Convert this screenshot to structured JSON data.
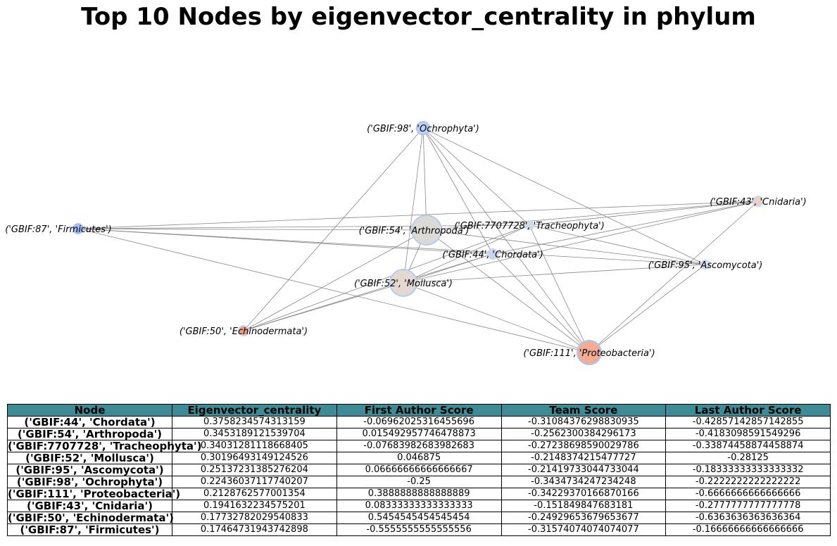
{
  "title": "Top 10 Nodes by eigenvector_centrality in phylum",
  "nodes": [
    {
      "label": "('GBIF:98', 'Ochrophyta')",
      "color": "#bfd3f6",
      "stroke": "#a9c3f5"
    },
    {
      "label": "('GBIF:43', 'Cnidaria')",
      "color": "#ead3c6",
      "stroke": "#c8d6f0"
    },
    {
      "label": "('GBIF:87', 'Firmicutes')",
      "color": "#9db9f3",
      "stroke": "#a9c3f5"
    },
    {
      "label": "('GBIF:54', 'Arthropoda')",
      "color": "#dcdad7",
      "stroke": "#b6cbf3"
    },
    {
      "label": "('GBIF:7707728', 'Tracheophyta')",
      "color": "#d6dae4",
      "stroke": "#c8d6f0"
    },
    {
      "label": "('GBIF:44', 'Chordata')",
      "color": "#cbd6ea",
      "stroke": "#c8d6f0"
    },
    {
      "label": "('GBIF:95', 'Ascomycota')",
      "color": "#dcdde3",
      "stroke": "#c8d6f0"
    },
    {
      "label": "('GBIF:52', 'Mollusca')",
      "color": "#e3d9d2",
      "stroke": "#b6cbf3"
    },
    {
      "label": "('GBIF:50', 'Echinodermata')",
      "color": "#ee9c80",
      "stroke": "#c8d6f0"
    },
    {
      "label": "('GBIF:111', 'Proteobacteria')",
      "color": "#f3ad93",
      "stroke": "#a9c3f5"
    }
  ],
  "edges": [
    [
      0,
      3
    ],
    [
      0,
      4
    ],
    [
      0,
      5
    ],
    [
      0,
      6
    ],
    [
      0,
      7
    ],
    [
      0,
      8
    ],
    [
      0,
      9
    ],
    [
      1,
      2
    ],
    [
      1,
      4
    ],
    [
      1,
      5
    ],
    [
      1,
      7
    ],
    [
      1,
      9
    ],
    [
      1,
      3
    ],
    [
      2,
      3
    ],
    [
      2,
      5
    ],
    [
      2,
      6
    ],
    [
      2,
      9
    ],
    [
      2,
      4
    ],
    [
      3,
      9
    ],
    [
      3,
      7
    ],
    [
      3,
      8
    ],
    [
      4,
      7
    ],
    [
      4,
      8
    ],
    [
      4,
      9
    ],
    [
      4,
      6
    ],
    [
      5,
      7
    ],
    [
      5,
      8
    ],
    [
      5,
      9
    ],
    [
      6,
      7
    ],
    [
      6,
      9
    ],
    [
      6,
      3
    ],
    [
      7,
      8
    ],
    [
      7,
      9
    ]
  ],
  "table": {
    "headers": [
      "Node",
      "Eigenvector_centrality",
      "First Author Score",
      "Team Score",
      "Last Author Score"
    ],
    "rows": [
      [
        "('GBIF:44', 'Chordata')",
        "0.3758234574313159",
        "-0.06962025316455696",
        "-0.31084376298830935",
        "-0.42857142857142855"
      ],
      [
        "('GBIF:54', 'Arthropoda')",
        "0.3453189121539704",
        "0.015492957746478873",
        "-0.2562300384296173",
        "-0.4183098591549296"
      ],
      [
        "('GBIF:7707728', 'Tracheophyta')",
        "0.34031281118668405",
        "-0.07683982683982683",
        "-0.27238698590029786",
        "-0.33874458874458874"
      ],
      [
        "('GBIF:52', 'Mollusca')",
        "0.30196493149124526",
        "0.046875",
        "-0.2148374215477727",
        "-0.28125"
      ],
      [
        "('GBIF:95', 'Ascomycota')",
        "0.25137231385276204",
        "0.06666666666666667",
        "-0.21419733044733044",
        "-0.18333333333333332"
      ],
      [
        "('GBIF:98', 'Ochrophyta')",
        "0.22436037117740207",
        "-0.25",
        "-0.3434734247234248",
        "-0.2222222222222222"
      ],
      [
        "('GBIF:111', 'Proteobacteria')",
        "0.2128762577001354",
        "0.3888888888888889",
        "-0.34229370166870166",
        "-0.6666666666666666"
      ],
      [
        "('GBIF:43', 'Cnidaria')",
        "0.1941632234575201",
        "0.08333333333333333",
        "-0.151849847683181",
        "-0.2777777777777778"
      ],
      [
        "('GBIF:50', 'Echinodermata')",
        "0.17732782029540833",
        "0.5454545454545454",
        "-0.24929653679653677",
        "-0.6363636363636364"
      ],
      [
        "('GBIF:87', 'Firmicutes')",
        "0.17464731943742898",
        "-0.5555555555555556",
        "-0.31574074074074077",
        "-0.16666666666666666"
      ]
    ]
  }
}
